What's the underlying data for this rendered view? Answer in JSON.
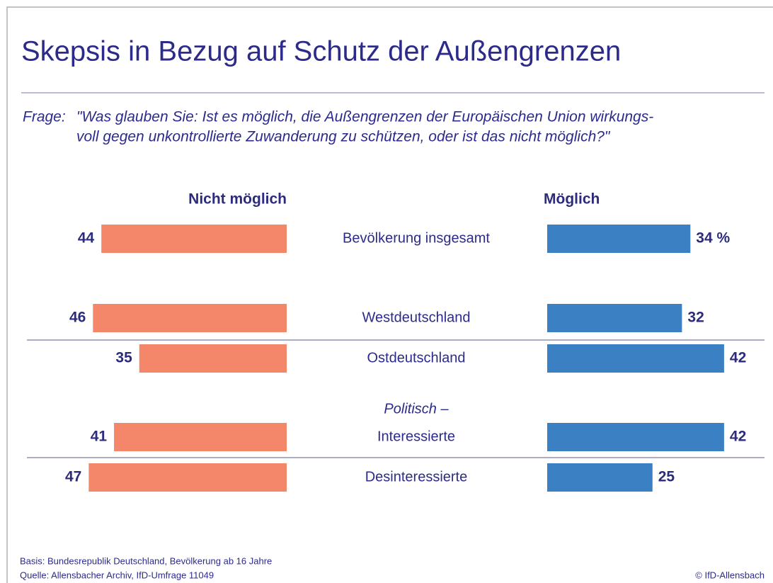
{
  "chart_data": {
    "type": "diverging-bar",
    "title": "Skepsis in Bezug auf Schutz der Außengrenzen",
    "question_label": "Frage:",
    "question": [
      "\"Was glauben Sie: Ist es möglich, die Außengrenzen der Europäischen Union wirkungs-",
      "voll gegen unkontrollierte Zuwanderung zu schützen, oder ist das nicht möglich?\""
    ],
    "categories": [
      "Bevölkerung insgesamt",
      "Westdeutschland",
      "Ostdeutschland",
      "Interessierte",
      "Desinteressierte"
    ],
    "annotation": "Politisch –",
    "series": [
      {
        "name": "Nicht möglich",
        "color": "#f4866a",
        "values": [
          44,
          46,
          35,
          41,
          47
        ]
      },
      {
        "name": "Möglich",
        "color": "#3a80c3",
        "values": [
          34,
          32,
          42,
          42,
          25
        ],
        "value_labels": [
          "34 %",
          "32",
          "42",
          "42",
          "25"
        ]
      }
    ],
    "notes": [
      "Basis: Bundesrepublik Deutschland, Bevölkerung ab 16 Jahre",
      "Quelle: Allensbacher Archiv, IfD-Umfrage 11049"
    ],
    "copyright": "© IfD-Allensbach"
  }
}
